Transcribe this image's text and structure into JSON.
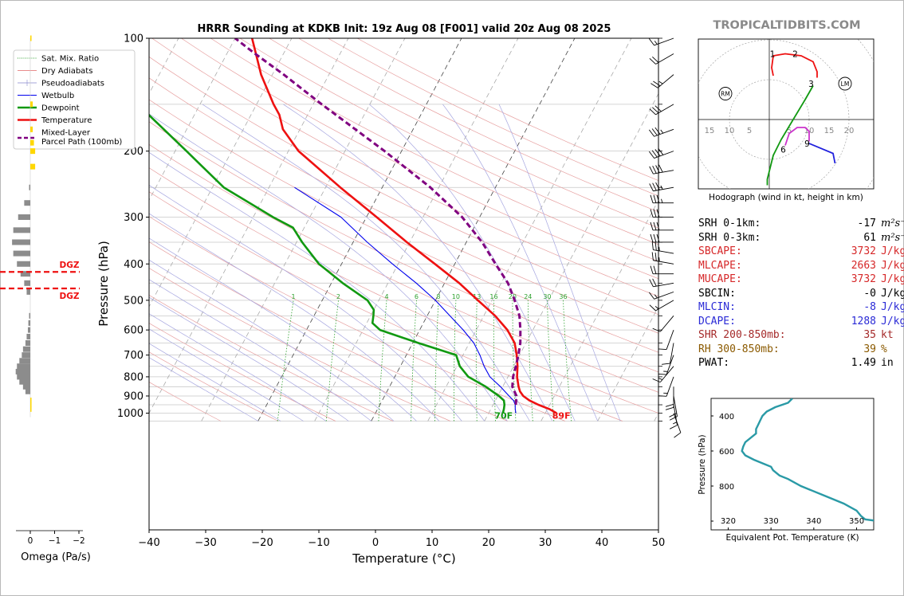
{
  "title": "HRRR Sounding at KDKB Init: 19z Aug 08 [F001] valid 20z Aug 08 2025",
  "watermark": "TROPICALTIDBITS.COM",
  "main_chart": {
    "type": "line",
    "xlabel": "Temperature (°C)",
    "ylabel": "Pressure (hPa)",
    "xlim": [
      -40,
      50
    ],
    "ylim": [
      1040,
      100
    ],
    "y_log_scale": true,
    "skew_per_decade_C": 35.2,
    "xticks": [
      "−40",
      "−30",
      "−20",
      "−10",
      "0",
      "10",
      "20",
      "30",
      "40",
      "50"
    ],
    "yticks": [
      "100",
      "200",
      "300",
      "400",
      "500",
      "600",
      "700",
      "800",
      "900",
      "1000"
    ],
    "legend_position": "upper-left",
    "legend": [
      {
        "label": "Sat. Mix. Ratio",
        "color": "#2ca02c",
        "style": "dotted"
      },
      {
        "label": "Dry Adiabats",
        "color": "#e06666",
        "style": "thin"
      },
      {
        "label": "Pseudoadiabats",
        "color": "#8888cc",
        "style": "thin"
      },
      {
        "label": "Wetbulb",
        "color": "#0000ee",
        "style": "solid"
      },
      {
        "label": "Dewpoint",
        "color": "#119911",
        "style": "thick"
      },
      {
        "label": "Temperature",
        "color": "#ee1111",
        "style": "thick"
      },
      {
        "label": "Mixed-Layer",
        "label2": "Parcel Path (100mb)",
        "color": "#800080",
        "style": "dashed"
      }
    ],
    "mixing_ratio_labels": [
      "1",
      "2",
      "4",
      "6",
      "8",
      "10",
      "13",
      "16",
      "20",
      "24",
      "30",
      "36"
    ],
    "surface_temp_label": "89F",
    "surface_dew_label": "70F",
    "series": [
      {
        "name": "Temperature",
        "color": "#ee1111",
        "points": [
          [
            1000,
            32
          ],
          [
            975,
            30.3
          ],
          [
            950,
            28
          ],
          [
            925,
            26
          ],
          [
            900,
            24.5
          ],
          [
            875,
            23.5
          ],
          [
            850,
            22.8
          ],
          [
            800,
            21.6
          ],
          [
            750,
            20.7
          ],
          [
            700,
            19.5
          ],
          [
            650,
            18
          ],
          [
            600,
            15.5
          ],
          [
            550,
            12
          ],
          [
            500,
            7.5
          ],
          [
            450,
            2.6
          ],
          [
            400,
            -3.5
          ],
          [
            350,
            -10.5
          ],
          [
            300,
            -18.2
          ],
          [
            250,
            -27.4
          ],
          [
            200,
            -38.2
          ],
          [
            175,
            -43
          ],
          [
            160,
            -45
          ],
          [
            150,
            -47
          ],
          [
            125,
            -52
          ],
          [
            100,
            -57
          ]
        ]
      },
      {
        "name": "Dewpoint",
        "color": "#119911",
        "points": [
          [
            1000,
            22.5
          ],
          [
            975,
            22.3
          ],
          [
            950,
            22
          ],
          [
            925,
            21.5
          ],
          [
            900,
            20.2
          ],
          [
            850,
            17
          ],
          [
            800,
            13
          ],
          [
            750,
            10.5
          ],
          [
            700,
            8.8
          ],
          [
            650,
            1
          ],
          [
            600,
            -7
          ],
          [
            575,
            -9
          ],
          [
            550,
            -9.5
          ],
          [
            530,
            -10
          ],
          [
            500,
            -12
          ],
          [
            450,
            -18
          ],
          [
            400,
            -24
          ],
          [
            350,
            -29
          ],
          [
            320,
            -32
          ],
          [
            300,
            -36.5
          ],
          [
            250,
            -48
          ],
          [
            200,
            -58
          ],
          [
            150,
            -71
          ],
          [
            125,
            -79
          ],
          [
            100,
            -90
          ]
        ]
      },
      {
        "name": "Wetbulb",
        "color": "#0000ee",
        "points": [
          [
            1000,
            24.8
          ],
          [
            975,
            24.3
          ],
          [
            950,
            23.9
          ],
          [
            925,
            23.2
          ],
          [
            900,
            22
          ],
          [
            850,
            19.6
          ],
          [
            800,
            16.8
          ],
          [
            750,
            14.8
          ],
          [
            700,
            13
          ],
          [
            650,
            10.8
          ],
          [
            600,
            7.7
          ],
          [
            550,
            4
          ],
          [
            500,
            0
          ],
          [
            450,
            -5
          ],
          [
            400,
            -11
          ],
          [
            350,
            -17.5
          ],
          [
            300,
            -24.5
          ],
          [
            250,
            -35.5
          ]
        ]
      },
      {
        "name": "Mixed-Layer Parcel Path (100mb)",
        "color": "#800080",
        "points": [
          [
            950,
            24
          ],
          [
            900,
            23.3
          ],
          [
            850,
            21.7
          ],
          [
            800,
            20.9
          ],
          [
            750,
            20.4
          ],
          [
            700,
            19.8
          ],
          [
            650,
            19
          ],
          [
            600,
            17.8
          ],
          [
            550,
            16.3
          ],
          [
            500,
            14
          ],
          [
            450,
            11.2
          ],
          [
            400,
            7.2
          ],
          [
            350,
            2.8
          ],
          [
            300,
            -3.1
          ],
          [
            250,
            -11.5
          ],
          [
            200,
            -23
          ],
          [
            150,
            -38.5
          ],
          [
            125,
            -48
          ],
          [
            110,
            -55
          ],
          [
            100,
            -60
          ]
        ]
      }
    ]
  },
  "omega": {
    "xlabel": "Omega (Pa/s)",
    "xticks": [
      "0",
      "−1",
      "−2"
    ],
    "dgz_label": "DGZ",
    "dgz_pressures": [
      420,
      465
    ],
    "bars": [
      [
        100,
        -0.05,
        "y"
      ],
      [
        150,
        -0.1,
        "y"
      ],
      [
        175,
        -0.1,
        "y"
      ],
      [
        190,
        -0.15,
        "y"
      ],
      [
        200,
        -0.2,
        "y"
      ],
      [
        220,
        -0.2,
        "y"
      ],
      [
        250,
        0.05,
        "g"
      ],
      [
        275,
        0.25,
        "g"
      ],
      [
        300,
        0.5,
        "g"
      ],
      [
        325,
        0.7,
        "g"
      ],
      [
        350,
        0.75,
        "g"
      ],
      [
        375,
        0.7,
        "g"
      ],
      [
        400,
        0.55,
        "g"
      ],
      [
        425,
        0.4,
        "g"
      ],
      [
        450,
        0.25,
        "g"
      ],
      [
        475,
        0.15,
        "g"
      ],
      [
        550,
        0.05,
        "g"
      ],
      [
        575,
        0.08,
        "g"
      ],
      [
        600,
        0.1,
        "g"
      ],
      [
        625,
        0.15,
        "g"
      ],
      [
        650,
        0.2,
        "g"
      ],
      [
        675,
        0.3,
        "g"
      ],
      [
        700,
        0.35,
        "g"
      ],
      [
        725,
        0.45,
        "g"
      ],
      [
        750,
        0.55,
        "g"
      ],
      [
        775,
        0.6,
        "g"
      ],
      [
        800,
        0.55,
        "g"
      ],
      [
        825,
        0.45,
        "g"
      ],
      [
        850,
        0.3,
        "g"
      ],
      [
        875,
        0.2,
        "g"
      ],
      [
        925,
        -0.05,
        "y"
      ],
      [
        950,
        -0.05,
        "y"
      ],
      [
        975,
        -0.05,
        "y"
      ]
    ]
  },
  "hodograph": {
    "caption": "Hodograph (wind in kt, height in km)",
    "ring_labels": [
      "15",
      "10",
      "5",
      "5",
      "10",
      "15",
      "20"
    ],
    "rm_label": "RM",
    "lm_label": "LM",
    "height_labels": [
      {
        "text": "1",
        "u": 0.8,
        "v": 16.5
      },
      {
        "text": "2",
        "u": 6.5,
        "v": 16.5
      },
      {
        "text": "3",
        "u": 10.5,
        "v": 9.0
      },
      {
        "text": "6",
        "u": 3.5,
        "v": -7.5
      },
      {
        "text": "9",
        "u": 9.5,
        "v": -6.0
      }
    ],
    "segments": [
      {
        "color": "#ee1111",
        "points": [
          [
            1,
            11
          ],
          [
            0.6,
            13
          ],
          [
            1,
            16
          ],
          [
            4,
            16.5
          ],
          [
            8,
            16
          ],
          [
            11,
            14.5
          ],
          [
            12,
            12
          ],
          [
            12,
            10.5
          ]
        ]
      },
      {
        "color": "#119911",
        "points": [
          [
            11,
            8.5
          ],
          [
            9,
            5
          ],
          [
            6,
            0
          ],
          [
            3,
            -5
          ],
          [
            1,
            -9
          ],
          [
            -0.5,
            -15
          ],
          [
            -0.5,
            -16.5
          ]
        ]
      },
      {
        "color": "#cc33cc",
        "points": [
          [
            4,
            -6.5
          ],
          [
            5,
            -3.5
          ],
          [
            7,
            -2
          ],
          [
            9,
            -2
          ],
          [
            10,
            -3
          ],
          [
            10,
            -5.5
          ]
        ]
      },
      {
        "color": "#2020dd",
        "points": [
          [
            10,
            -6
          ],
          [
            16,
            -8.5
          ],
          [
            16.5,
            -11
          ]
        ]
      }
    ],
    "rm_uv": [
      -11,
      6.5
    ],
    "lm_uv": [
      19,
      9
    ]
  },
  "stats": [
    {
      "label": "SRH 0-1km:",
      "value": "-17",
      "unit": "m²s⁻²",
      "color": "#000000"
    },
    {
      "label": "SRH 0-3km:",
      "value": "61",
      "unit": "m²s⁻²",
      "color": "#000000"
    },
    {
      "label": "SBCAPE:",
      "value": "3732",
      "unit": "J/kg",
      "color": "#d62728"
    },
    {
      "label": "MLCAPE:",
      "value": "2663",
      "unit": "J/kg",
      "color": "#d62728"
    },
    {
      "label": "MUCAPE:",
      "value": "3732",
      "unit": "J/kg",
      "color": "#d62728"
    },
    {
      "label": "SBCIN:",
      "value": "-0",
      "unit": "J/kg",
      "color": "#000000"
    },
    {
      "label": "MLCIN:",
      "value": "-8",
      "unit": "J/kg",
      "color": "#2a2ad6"
    },
    {
      "label": "DCAPE:",
      "value": "1288",
      "unit": "J/kg",
      "color": "#2a2ad6"
    },
    {
      "label": "SHR 200-850mb:",
      "value": "35",
      "unit": "kt",
      "color": "#a52a2a"
    },
    {
      "label": "RH 300-850mb:",
      "value": "39",
      "unit": "%",
      "color": "#8b5a00"
    },
    {
      "label": "PWAT:",
      "value": "1.49",
      "unit": "in",
      "color": "#000000"
    }
  ],
  "theta_e": {
    "type": "line",
    "xlabel": "Equivalent Pot. Temperature (K)",
    "ylabel": "Pressure (hPa)",
    "xlim": [
      316,
      354
    ],
    "ylim": [
      1050,
      300
    ],
    "xticks": [
      "320",
      "330",
      "340",
      "350"
    ],
    "yticks": [
      "400",
      "600",
      "800"
    ],
    "color": "#2a9aa6",
    "points": [
      [
        300,
        335
      ],
      [
        325,
        334
      ],
      [
        350,
        331
      ],
      [
        375,
        329
      ],
      [
        400,
        328
      ],
      [
        425,
        327.5
      ],
      [
        450,
        327
      ],
      [
        475,
        326.5
      ],
      [
        500,
        326.5
      ],
      [
        550,
        324
      ],
      [
        575,
        323.5
      ],
      [
        600,
        323.2
      ],
      [
        625,
        324
      ],
      [
        650,
        326
      ],
      [
        675,
        328.5
      ],
      [
        690,
        330
      ],
      [
        710,
        330.5
      ],
      [
        740,
        332
      ],
      [
        760,
        334
      ],
      [
        800,
        337
      ],
      [
        850,
        342
      ],
      [
        900,
        347
      ],
      [
        940,
        350
      ],
      [
        970,
        351
      ],
      [
        990,
        352
      ],
      [
        1000,
        355
      ]
    ]
  },
  "barbs": {
    "pressures": [
      100,
      110,
      125,
      150,
      175,
      200,
      225,
      250,
      275,
      300,
      325,
      350,
      375,
      400,
      425,
      450,
      475,
      500,
      550,
      600,
      650,
      700,
      750,
      800,
      850,
      900,
      950,
      1000
    ],
    "directions_deg": [
      250,
      240,
      230,
      240,
      250,
      250,
      260,
      260,
      270,
      270,
      270,
      270,
      280,
      280,
      270,
      260,
      250,
      240,
      220,
      200,
      190,
      200,
      220,
      200,
      180,
      170,
      170,
      160
    ],
    "speeds_kt": [
      15,
      20,
      25,
      30,
      35,
      40,
      40,
      35,
      35,
      30,
      30,
      30,
      25,
      25,
      20,
      20,
      15,
      15,
      10,
      10,
      10,
      15,
      15,
      15,
      20,
      20,
      15,
      10
    ]
  }
}
